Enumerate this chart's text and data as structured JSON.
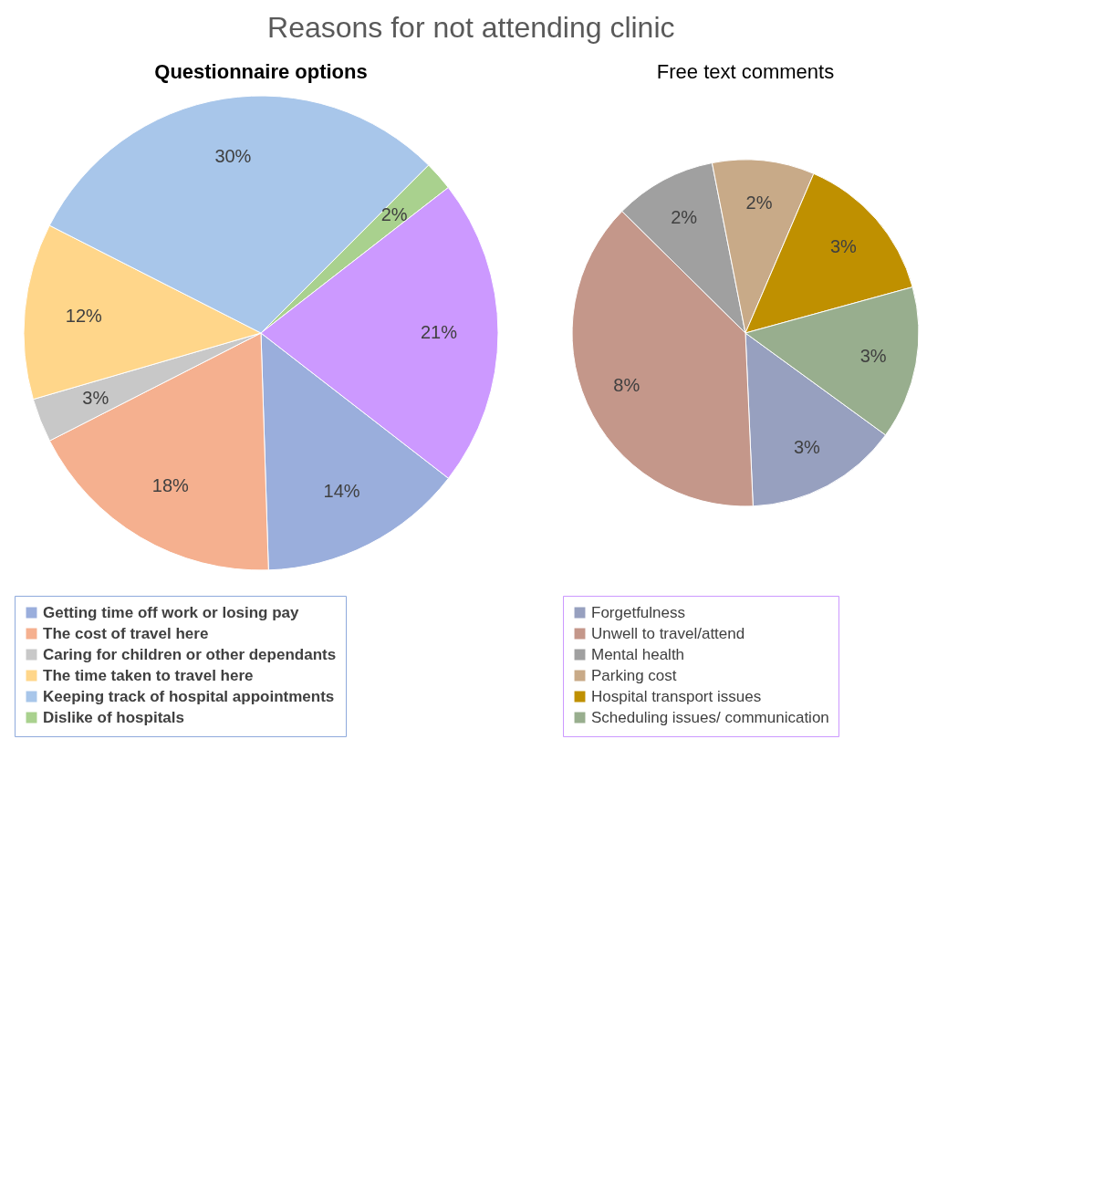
{
  "chart_data": [
    {
      "type": "pie",
      "title": "Reasons for not attending clinic",
      "subtitle": "Questionnaire options",
      "categories": [
        "Getting time off work or losing pay",
        "The cost of travel here",
        "Caring for children or other dependants",
        "The time taken to travel here",
        "Keeping track of hospital appointments",
        "Dislike of hospitals",
        null
      ],
      "values": [
        14,
        18,
        3,
        12,
        30,
        2,
        21
      ],
      "value_labels": [
        "14%",
        "18%",
        "3%",
        "12%",
        "30%",
        "2%",
        "21%"
      ],
      "colors": [
        "#9aaedc",
        "#f5b08f",
        "#c8c8c8",
        "#ffd68a",
        "#a8c6ea",
        "#a9d18e",
        "#cc99ff"
      ],
      "legend": "bottom"
    },
    {
      "type": "pie",
      "subtitle": "Free text comments",
      "categories": [
        "Forgetfulness",
        "Unwell to travel/attend",
        "Mental  health",
        "Parking cost",
        "Hospital transport issues",
        "Scheduling issues/ communication"
      ],
      "values": [
        3,
        8,
        2,
        2,
        3,
        3
      ],
      "value_labels": [
        "3%",
        "8%",
        "2%",
        "2%",
        "3%",
        "3%"
      ],
      "colors": [
        "#97a0bf",
        "#c4978a",
        "#a0a0a0",
        "#c8aa88",
        "#bf9000",
        "#98ae8e"
      ],
      "legend": "bottom"
    }
  ]
}
